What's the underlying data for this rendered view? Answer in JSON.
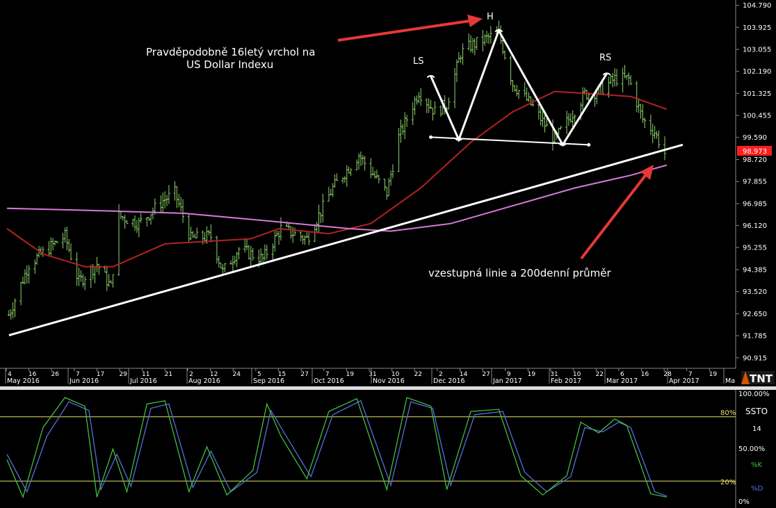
{
  "colors": {
    "background": "#000000",
    "price_bars": "#8ed66b",
    "ma_red": "#b22222",
    "ma_magenta": "#d77ad7",
    "trendline": "#ffffff",
    "arrow": "#e53935",
    "stoch_k": "#3fbf3f",
    "stoch_d": "#5a6ee0",
    "stoch_level": "#e6e06a",
    "price_badge": "#ff1e1e"
  },
  "annotations": {
    "title_line1": "Pravděpodobně 16letý vrchol na",
    "title_line2": "US Dollar Indexu",
    "ls": "LS",
    "h": "H",
    "rs": "RS",
    "trend_note": "vzestupná linie a 200denní průměr"
  },
  "price_badge": "98.973",
  "logo": "TNT",
  "x_axis": {
    "day_ticks": [
      "4",
      "16",
      "26",
      "7",
      "17",
      "29",
      "11",
      "21",
      "2",
      "12",
      "24",
      "5",
      "15",
      "27",
      "7",
      "19",
      "31",
      "10",
      "22",
      "2",
      "14",
      "27",
      "9",
      "19",
      "31",
      "10",
      "22",
      "6",
      "16",
      "28",
      "7",
      "19"
    ],
    "month_labels": [
      "May 2016",
      "Jun 2016",
      "Jul 2016",
      "Aug 2016",
      "Sep 2016",
      "Oct 2016",
      "Nov 2016",
      "Dec 2016",
      "Jan 2017",
      "Feb 2017",
      "Mar 2017",
      "Apr 2017",
      "Ma"
    ]
  },
  "stoch_panel": {
    "labels": [
      "100.00%",
      "80%",
      "50.00%",
      "20%",
      "0%"
    ],
    "indicator": "SSTO",
    "period": "14",
    "k_label": "%K",
    "d_label": "%D"
  },
  "chart_data": [
    {
      "type": "line",
      "title": "",
      "y_ticks": [
        "104.790",
        "103.925",
        "103.055",
        "102.190",
        "101.325",
        "100.455",
        "99.590",
        "98.720",
        "97.855",
        "96.985",
        "96.120",
        "95.255",
        "94.385",
        "93.520",
        "92.650",
        "91.785",
        "90.915"
      ],
      "ylim": [
        90.5,
        105.0
      ],
      "x_range": [
        "2016-05-02",
        "2017-04-28"
      ],
      "grid": false,
      "series": [
        {
          "kind": "ohlc-close",
          "values": [
            {
              "x": "2016-05-03",
              "y": 92.6
            },
            {
              "x": "2016-05-13",
              "y": 94.6
            },
            {
              "x": "2016-05-24",
              "y": 95.3
            },
            {
              "x": "2016-05-31",
              "y": 95.7
            },
            {
              "x": "2016-06-07",
              "y": 93.9
            },
            {
              "x": "2016-06-16",
              "y": 94.6
            },
            {
              "x": "2016-06-23",
              "y": 93.7
            },
            {
              "x": "2016-06-27",
              "y": 96.5
            },
            {
              "x": "2016-07-07",
              "y": 96.2
            },
            {
              "x": "2016-07-19",
              "y": 97.1
            },
            {
              "x": "2016-07-25",
              "y": 97.4
            },
            {
              "x": "2016-08-02",
              "y": 95.6
            },
            {
              "x": "2016-08-12",
              "y": 95.7
            },
            {
              "x": "2016-08-18",
              "y": 94.3
            },
            {
              "x": "2016-08-26",
              "y": 95.2
            },
            {
              "x": "2016-09-07",
              "y": 94.8
            },
            {
              "x": "2016-09-16",
              "y": 96.0
            },
            {
              "x": "2016-09-29",
              "y": 95.6
            },
            {
              "x": "2016-10-12",
              "y": 97.6
            },
            {
              "x": "2016-10-25",
              "y": 98.9
            },
            {
              "x": "2016-11-08",
              "y": 97.4
            },
            {
              "x": "2016-11-14",
              "y": 99.6
            },
            {
              "x": "2016-11-24",
              "y": 101.4
            },
            {
              "x": "2016-12-02",
              "y": 100.6
            },
            {
              "x": "2016-12-08",
              "y": 100.9
            },
            {
              "x": "2016-12-15",
              "y": 102.9
            },
            {
              "x": "2016-12-20",
              "y": 103.2
            },
            {
              "x": "2017-01-03",
              "y": 103.7
            },
            {
              "x": "2017-01-10",
              "y": 101.7
            },
            {
              "x": "2017-01-20",
              "y": 100.8
            },
            {
              "x": "2017-01-31",
              "y": 99.5
            },
            {
              "x": "2017-02-07",
              "y": 100.3
            },
            {
              "x": "2017-02-15",
              "y": 101.3
            },
            {
              "x": "2017-02-22",
              "y": 101.4
            },
            {
              "x": "2017-03-02",
              "y": 101.9
            },
            {
              "x": "2017-03-09",
              "y": 101.9
            },
            {
              "x": "2017-03-16",
              "y": 100.3
            },
            {
              "x": "2017-03-22",
              "y": 99.8
            },
            {
              "x": "2017-03-27",
              "y": 98.97
            }
          ]
        },
        {
          "kind": "moving-average-red",
          "values": [
            {
              "x": "2016-05-02",
              "y": 96.0
            },
            {
              "x": "2016-05-20",
              "y": 95.0
            },
            {
              "x": "2016-06-10",
              "y": 94.5
            },
            {
              "x": "2016-06-24",
              "y": 94.5
            },
            {
              "x": "2016-07-20",
              "y": 95.4
            },
            {
              "x": "2016-08-10",
              "y": 95.5
            },
            {
              "x": "2016-09-01",
              "y": 95.6
            },
            {
              "x": "2016-09-15",
              "y": 96.0
            },
            {
              "x": "2016-10-10",
              "y": 95.8
            },
            {
              "x": "2016-10-31",
              "y": 96.2
            },
            {
              "x": "2016-11-25",
              "y": 97.6
            },
            {
              "x": "2016-12-20",
              "y": 99.4
            },
            {
              "x": "2017-01-10",
              "y": 100.6
            },
            {
              "x": "2017-01-31",
              "y": 101.4
            },
            {
              "x": "2017-02-20",
              "y": 101.3
            },
            {
              "x": "2017-03-10",
              "y": 101.2
            },
            {
              "x": "2017-03-28",
              "y": 100.7
            }
          ]
        },
        {
          "kind": "moving-average-200",
          "values": [
            {
              "x": "2016-05-02",
              "y": 96.8
            },
            {
              "x": "2016-06-20",
              "y": 96.7
            },
            {
              "x": "2016-07-30",
              "y": 96.6
            },
            {
              "x": "2016-09-10",
              "y": 96.3
            },
            {
              "x": "2016-10-20",
              "y": 96.0
            },
            {
              "x": "2016-11-10",
              "y": 95.9
            },
            {
              "x": "2016-12-10",
              "y": 96.2
            },
            {
              "x": "2017-01-10",
              "y": 96.9
            },
            {
              "x": "2017-02-10",
              "y": 97.6
            },
            {
              "x": "2017-03-10",
              "y": 98.1
            },
            {
              "x": "2017-03-28",
              "y": 98.5
            }
          ]
        }
      ],
      "lines": [
        {
          "name": "trendline",
          "from": {
            "x": "2016-05-03",
            "y": 91.8
          },
          "to": {
            "x": "2017-04-05",
            "y": 99.3
          }
        },
        {
          "name": "neckline",
          "from": {
            "x": "2016-11-30",
            "y": 99.6
          },
          "to": {
            "x": "2017-02-17",
            "y": 99.3
          }
        }
      ],
      "pattern_points": [
        {
          "label": "LS",
          "x": "2016-11-30",
          "y": 102.0
        },
        {
          "x": "2016-12-14",
          "y": 99.5
        },
        {
          "label": "H",
          "x": "2017-01-03",
          "y": 103.8
        },
        {
          "x": "2017-02-04",
          "y": 99.3
        },
        {
          "label": "RS",
          "x": "2017-02-26",
          "y": 102.1
        }
      ]
    },
    {
      "type": "line",
      "title": "",
      "ylim": [
        0,
        100
      ],
      "levels": [
        80,
        20
      ],
      "series": [
        {
          "name": "%K",
          "values": [
            {
              "x": "2016-05-02",
              "y": 40
            },
            {
              "x": "2016-05-10",
              "y": 5
            },
            {
              "x": "2016-05-20",
              "y": 70
            },
            {
              "x": "2016-05-31",
              "y": 98
            },
            {
              "x": "2016-06-10",
              "y": 90
            },
            {
              "x": "2016-06-16",
              "y": 5
            },
            {
              "x": "2016-06-24",
              "y": 50
            },
            {
              "x": "2016-07-01",
              "y": 10
            },
            {
              "x": "2016-07-11",
              "y": 92
            },
            {
              "x": "2016-07-20",
              "y": 95
            },
            {
              "x": "2016-08-01",
              "y": 10
            },
            {
              "x": "2016-08-10",
              "y": 52
            },
            {
              "x": "2016-08-20",
              "y": 7
            },
            {
              "x": "2016-09-02",
              "y": 30
            },
            {
              "x": "2016-09-09",
              "y": 92
            },
            {
              "x": "2016-09-16",
              "y": 62
            },
            {
              "x": "2016-09-29",
              "y": 22
            },
            {
              "x": "2016-10-10",
              "y": 85
            },
            {
              "x": "2016-10-24",
              "y": 97
            },
            {
              "x": "2016-11-08",
              "y": 12
            },
            {
              "x": "2016-11-18",
              "y": 98
            },
            {
              "x": "2016-11-30",
              "y": 90
            },
            {
              "x": "2016-12-08",
              "y": 12
            },
            {
              "x": "2016-12-20",
              "y": 85
            },
            {
              "x": "2017-01-03",
              "y": 87
            },
            {
              "x": "2017-01-14",
              "y": 25
            },
            {
              "x": "2017-01-25",
              "y": 7
            },
            {
              "x": "2017-02-06",
              "y": 25
            },
            {
              "x": "2017-02-13",
              "y": 75
            },
            {
              "x": "2017-02-22",
              "y": 65
            },
            {
              "x": "2017-03-02",
              "y": 78
            },
            {
              "x": "2017-03-08",
              "y": 72
            },
            {
              "x": "2017-03-20",
              "y": 8
            },
            {
              "x": "2017-03-28",
              "y": 5
            }
          ]
        },
        {
          "name": "%D",
          "values": [
            {
              "x": "2016-05-02",
              "y": 45
            },
            {
              "x": "2016-05-12",
              "y": 10
            },
            {
              "x": "2016-05-22",
              "y": 62
            },
            {
              "x": "2016-06-02",
              "y": 94
            },
            {
              "x": "2016-06-12",
              "y": 86
            },
            {
              "x": "2016-06-18",
              "y": 12
            },
            {
              "x": "2016-06-26",
              "y": 45
            },
            {
              "x": "2016-07-03",
              "y": 15
            },
            {
              "x": "2016-07-13",
              "y": 88
            },
            {
              "x": "2016-07-22",
              "y": 92
            },
            {
              "x": "2016-08-03",
              "y": 14
            },
            {
              "x": "2016-08-12",
              "y": 48
            },
            {
              "x": "2016-08-22",
              "y": 10
            },
            {
              "x": "2016-09-04",
              "y": 28
            },
            {
              "x": "2016-09-11",
              "y": 86
            },
            {
              "x": "2016-09-18",
              "y": 64
            },
            {
              "x": "2016-10-01",
              "y": 24
            },
            {
              "x": "2016-10-12",
              "y": 82
            },
            {
              "x": "2016-10-26",
              "y": 95
            },
            {
              "x": "2016-11-10",
              "y": 16
            },
            {
              "x": "2016-11-20",
              "y": 94
            },
            {
              "x": "2016-12-01",
              "y": 88
            },
            {
              "x": "2016-12-10",
              "y": 16
            },
            {
              "x": "2016-12-22",
              "y": 82
            },
            {
              "x": "2017-01-05",
              "y": 85
            },
            {
              "x": "2017-01-16",
              "y": 28
            },
            {
              "x": "2017-01-27",
              "y": 10
            },
            {
              "x": "2017-02-08",
              "y": 24
            },
            {
              "x": "2017-02-15",
              "y": 70
            },
            {
              "x": "2017-02-24",
              "y": 66
            },
            {
              "x": "2017-03-04",
              "y": 75
            },
            {
              "x": "2017-03-10",
              "y": 70
            },
            {
              "x": "2017-03-22",
              "y": 10
            },
            {
              "x": "2017-03-28",
              "y": 6
            }
          ]
        }
      ]
    }
  ]
}
